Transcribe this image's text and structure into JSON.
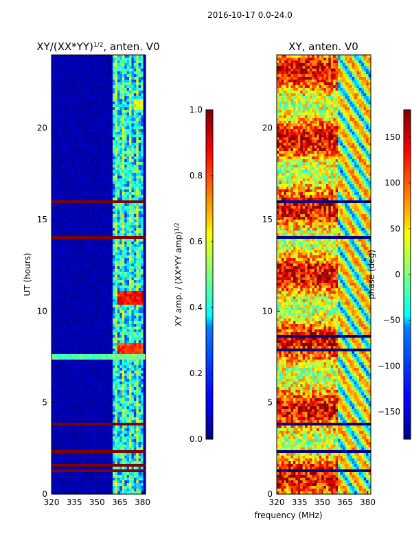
{
  "figure": {
    "suptitle": "2016-10-17 0.0-24.0",
    "shared_xlabel": "frequency (MHz)"
  },
  "chart_data": [
    {
      "type": "heatmap",
      "id": "amp",
      "title_main": "XY/(XX*YY)",
      "title_sup": "1/2",
      "title_tail": ", anten. V0",
      "ylabel": "UT (hours)",
      "xlim": [
        320,
        382
      ],
      "ylim": [
        0,
        24
      ],
      "xticks": [
        320,
        335,
        350,
        365,
        380
      ],
      "xtick_labels": [
        "320",
        "335",
        "350",
        "365",
        "380"
      ],
      "yticks": [
        0,
        5,
        10,
        15,
        20
      ],
      "ytick_labels": [
        "0",
        "5",
        "10",
        "15",
        "20"
      ],
      "colormap": "jet",
      "colorbar": {
        "label_main": "XY amp. / (XX*YY amp)",
        "label_sup": "1/2",
        "vmin": 0.0,
        "vmax": 1.0,
        "ticks": [
          0.0,
          0.2,
          0.4,
          0.6,
          0.8,
          1.0
        ],
        "tick_labels": [
          "0.0",
          "0.2",
          "0.4",
          "0.6",
          "0.8",
          "1.0"
        ]
      },
      "features": {
        "active_band_mhz": [
          360,
          380
        ],
        "background_level": 0.02,
        "band_level": 0.35,
        "saturated_hours": [
          [
            13.9,
            14.15
          ],
          [
            15.85,
            16.0
          ],
          [
            3.75,
            3.95
          ],
          [
            2.3,
            2.45
          ],
          [
            1.2,
            1.35
          ],
          [
            1.55,
            1.65
          ]
        ],
        "bright_stripe_hours": [
          [
            7.3,
            7.7
          ]
        ],
        "hot_spots": [
          {
            "t": 10.7,
            "f": [
              364,
              380
            ],
            "level": 0.95
          },
          {
            "t": 7.9,
            "f": [
              364,
              380
            ],
            "level": 0.9
          },
          {
            "t": 21.3,
            "f": [
              375,
              380
            ],
            "level": 0.7
          }
        ]
      }
    },
    {
      "type": "heatmap",
      "id": "phase",
      "title_main": "XY, anten. V0",
      "xlim": [
        320,
        382
      ],
      "ylim": [
        0,
        24
      ],
      "xticks": [
        320,
        335,
        350,
        365,
        380
      ],
      "xtick_labels": [
        "320",
        "335",
        "350",
        "365",
        "380"
      ],
      "yticks": [
        0,
        5,
        10,
        15,
        20
      ],
      "ytick_labels": [
        "0",
        "5",
        "10",
        "15",
        "20"
      ],
      "colormap": "jet",
      "colorbar": {
        "label_main": "phase (deg)",
        "vmin": -180,
        "vmax": 180,
        "ticks": [
          -150,
          -100,
          -50,
          0,
          50,
          100,
          150
        ],
        "tick_labels": [
          "−150",
          "−100",
          "−50",
          "0",
          "50",
          "100",
          "150"
        ]
      },
      "features": {
        "flagged_hours": [
          [
            13.9,
            14.15
          ],
          [
            15.85,
            16.0
          ],
          [
            3.75,
            3.95
          ],
          [
            2.3,
            2.45
          ],
          [
            1.2,
            1.35
          ],
          [
            7.85,
            7.95
          ],
          [
            8.6,
            8.7
          ]
        ]
      }
    }
  ],
  "colors": {
    "jet_low": "#00007f",
    "jet_high": "#7f0000",
    "flag_line": "#000000"
  }
}
